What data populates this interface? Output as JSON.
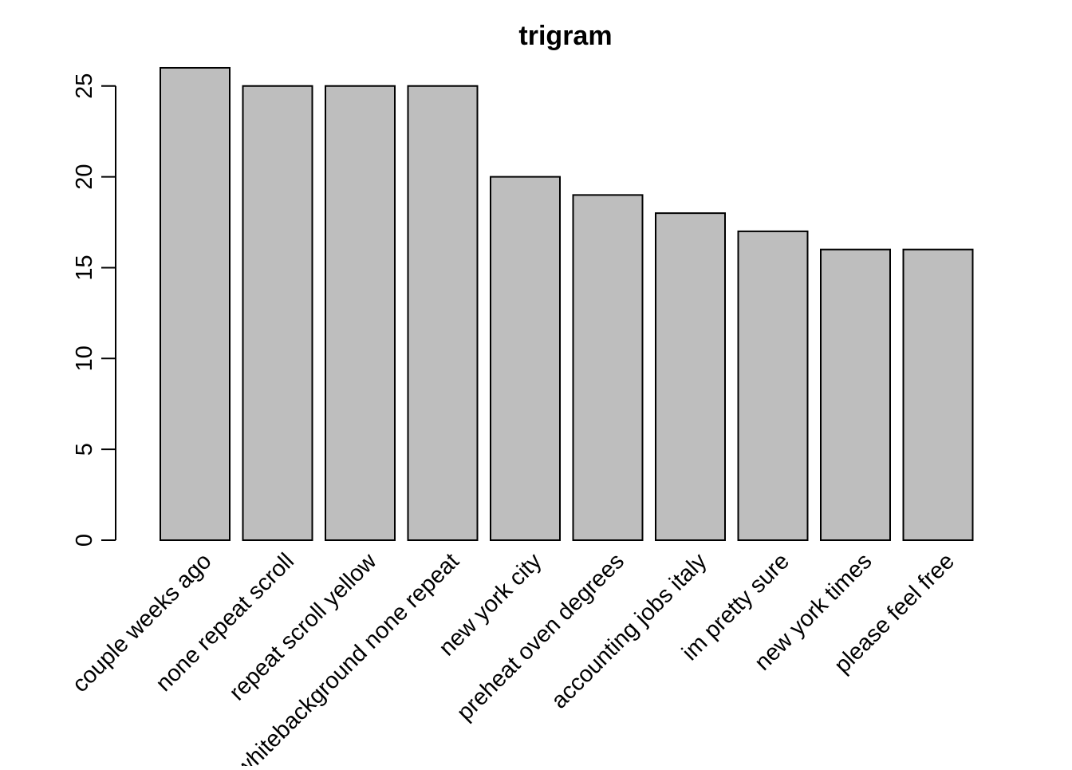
{
  "chart_data": {
    "type": "bar",
    "title": "trigram",
    "xlabel": "",
    "ylabel": "",
    "categories": [
      "couple weeks ago",
      "none repeat scroll",
      "repeat scroll yellow",
      "whitebackground none repeat",
      "new york city",
      "preheat oven degrees",
      "accounting jobs italy",
      "im pretty sure",
      "new york times",
      "please feel free"
    ],
    "values": [
      26,
      25,
      25,
      25,
      20,
      19,
      18,
      17,
      16,
      16
    ],
    "yticks": [
      0,
      5,
      10,
      15,
      20,
      25
    ],
    "ylim": [
      0,
      26
    ],
    "bar_color": "#bebebe",
    "edge_color": "#000000",
    "grid": false,
    "legend": "none"
  }
}
